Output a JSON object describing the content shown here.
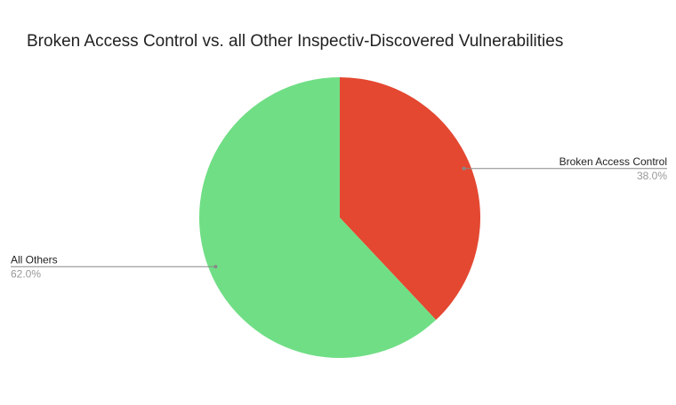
{
  "chart_data": {
    "type": "pie",
    "title": "Broken Access Control vs. all Other Inspectiv-Discovered Vulnerabilities",
    "categories": [
      "Broken Access Control",
      "All Others"
    ],
    "values": [
      38.0,
      62.0
    ],
    "value_labels": [
      "38.0%",
      "62.0%"
    ],
    "colors": [
      "#e44831",
      "#70de85"
    ]
  }
}
